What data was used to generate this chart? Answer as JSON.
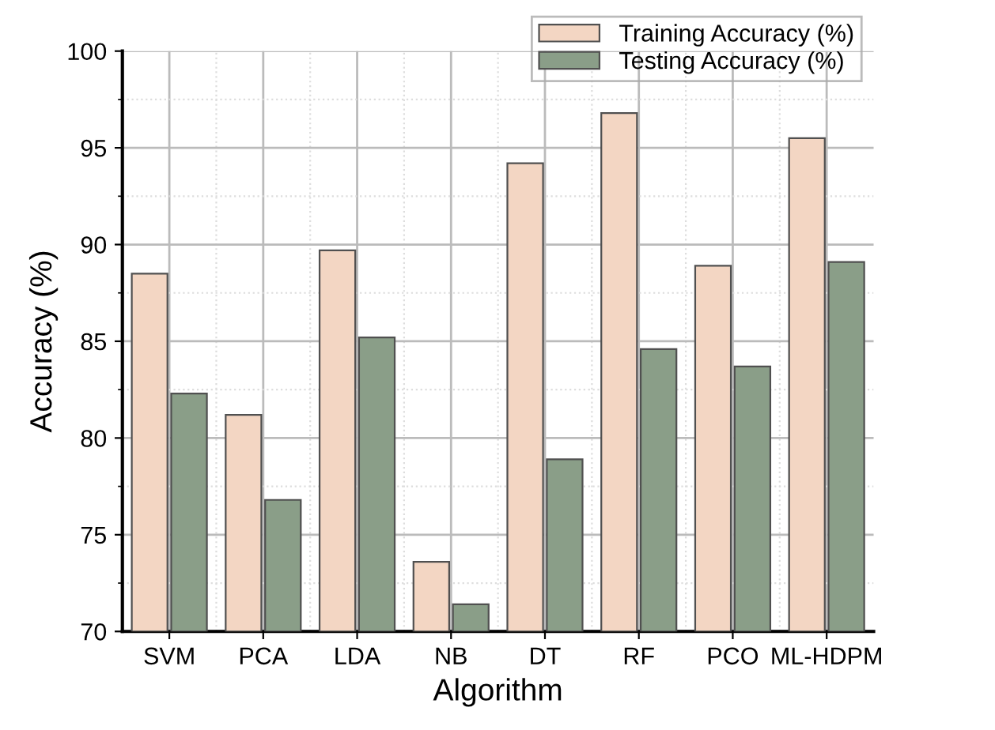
{
  "chart_data": {
    "type": "bar",
    "xlabel": "Algorithm",
    "ylabel": "Accuracy (%)",
    "categories": [
      "SVM",
      "PCA",
      "LDA",
      "NB",
      "DT",
      "RF",
      "PCO",
      "ML-HDPM"
    ],
    "series": [
      {
        "name": "Training Accuracy (%)",
        "color": "#f3d6c3",
        "values": [
          88.5,
          81.2,
          89.7,
          73.6,
          94.2,
          96.8,
          88.9,
          95.5
        ]
      },
      {
        "name": "Testing Accuracy (%)",
        "color": "#8a9e88",
        "values": [
          82.3,
          76.8,
          85.2,
          71.4,
          78.9,
          84.6,
          83.7,
          89.1
        ]
      }
    ],
    "ylim": [
      70,
      100
    ],
    "yticks": [
      70,
      75,
      80,
      85,
      90,
      95,
      100
    ],
    "grid": true,
    "legend": "top right"
  }
}
